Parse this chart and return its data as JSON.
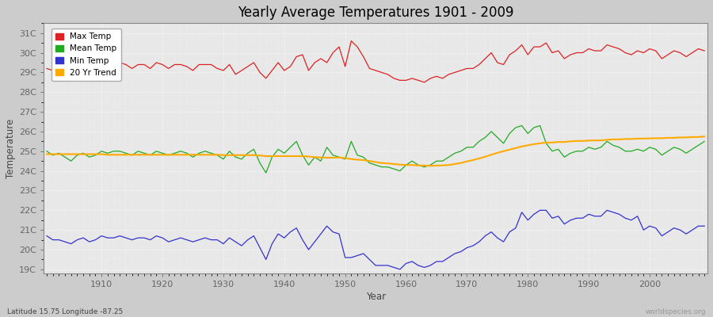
{
  "title": "Yearly Average Temperatures 1901 - 2009",
  "xlabel": "Year",
  "ylabel": "Temperature",
  "years_start": 1901,
  "years_end": 2009,
  "yticks": [
    19,
    20,
    21,
    22,
    23,
    24,
    25,
    26,
    27,
    28,
    29,
    30,
    31
  ],
  "ytick_labels": [
    "19C",
    "20C",
    "21C",
    "22C",
    "23C",
    "24C",
    "25C",
    "26C",
    "27C",
    "28C",
    "29C",
    "30C",
    "31C"
  ],
  "ylim": [
    18.8,
    31.5
  ],
  "xlim": [
    1900.5,
    2009.5
  ],
  "max_temp_color": "#dd2222",
  "mean_temp_color": "#22aa22",
  "min_temp_color": "#3333cc",
  "trend_color": "#ffaa00",
  "legend_labels": [
    "Max Temp",
    "Mean Temp",
    "Min Temp",
    "20 Yr Trend"
  ],
  "subtitle_left": "Latitude 15.75 Longitude -87.25",
  "subtitle_right": "worldspecies.org",
  "max_temps": [
    29.2,
    29.1,
    29.3,
    29.2,
    29.1,
    29.3,
    29.4,
    29.2,
    29.2,
    29.5,
    29.3,
    29.5,
    29.5,
    29.4,
    29.2,
    29.4,
    29.4,
    29.2,
    29.5,
    29.4,
    29.2,
    29.4,
    29.4,
    29.3,
    29.1,
    29.4,
    29.4,
    29.4,
    29.2,
    29.1,
    29.4,
    28.9,
    29.1,
    29.3,
    29.5,
    29.0,
    28.7,
    29.1,
    29.5,
    29.1,
    29.3,
    29.8,
    29.9,
    29.1,
    29.5,
    29.7,
    29.5,
    30.0,
    30.3,
    29.3,
    30.6,
    30.3,
    29.8,
    29.2,
    29.1,
    29.0,
    28.9,
    28.7,
    28.6,
    28.6,
    28.7,
    28.6,
    28.5,
    28.7,
    28.8,
    28.7,
    28.9,
    29.0,
    29.1,
    29.2,
    29.2,
    29.4,
    29.7,
    30.0,
    29.5,
    29.4,
    29.9,
    30.1,
    30.4,
    29.9,
    30.3,
    30.3,
    30.5,
    30.0,
    30.1,
    29.7,
    29.9,
    30.0,
    30.0,
    30.2,
    30.1,
    30.1,
    30.4,
    30.3,
    30.2,
    30.0,
    29.9,
    30.1,
    30.0,
    30.2,
    30.1,
    29.7,
    29.9,
    30.1,
    30.0,
    29.8,
    30.0,
    30.2,
    30.1
  ],
  "mean_temps": [
    25.0,
    24.8,
    24.9,
    24.7,
    24.5,
    24.8,
    24.9,
    24.7,
    24.8,
    25.0,
    24.9,
    25.0,
    25.0,
    24.9,
    24.8,
    25.0,
    24.9,
    24.8,
    25.0,
    24.9,
    24.8,
    24.9,
    25.0,
    24.9,
    24.7,
    24.9,
    25.0,
    24.9,
    24.8,
    24.6,
    25.0,
    24.7,
    24.6,
    24.9,
    25.1,
    24.4,
    23.9,
    24.7,
    25.1,
    24.9,
    25.2,
    25.5,
    24.8,
    24.3,
    24.7,
    24.5,
    25.2,
    24.8,
    24.7,
    24.6,
    25.5,
    24.8,
    24.7,
    24.4,
    24.3,
    24.2,
    24.2,
    24.1,
    24.0,
    24.3,
    24.5,
    24.3,
    24.2,
    24.3,
    24.5,
    24.5,
    24.7,
    24.9,
    25.0,
    25.2,
    25.2,
    25.5,
    25.7,
    26.0,
    25.7,
    25.4,
    25.9,
    26.2,
    26.3,
    25.9,
    26.2,
    26.3,
    25.4,
    25.0,
    25.1,
    24.7,
    24.9,
    25.0,
    25.0,
    25.2,
    25.1,
    25.2,
    25.5,
    25.3,
    25.2,
    25.0,
    25.0,
    25.1,
    25.0,
    25.2,
    25.1,
    24.8,
    25.0,
    25.2,
    25.1,
    24.9,
    25.1,
    25.3,
    25.5
  ],
  "min_temps": [
    20.7,
    20.5,
    20.5,
    20.4,
    20.3,
    20.5,
    20.6,
    20.4,
    20.5,
    20.7,
    20.6,
    20.6,
    20.7,
    20.6,
    20.5,
    20.6,
    20.6,
    20.5,
    20.7,
    20.6,
    20.4,
    20.5,
    20.6,
    20.5,
    20.4,
    20.5,
    20.6,
    20.5,
    20.5,
    20.3,
    20.6,
    20.4,
    20.2,
    20.5,
    20.7,
    20.1,
    19.5,
    20.3,
    20.8,
    20.6,
    20.9,
    21.1,
    20.5,
    20.0,
    20.4,
    20.8,
    21.2,
    20.9,
    20.8,
    19.6,
    19.6,
    19.7,
    19.8,
    19.5,
    19.2,
    19.2,
    19.2,
    19.1,
    19.0,
    19.3,
    19.4,
    19.2,
    19.1,
    19.2,
    19.4,
    19.4,
    19.6,
    19.8,
    19.9,
    20.1,
    20.2,
    20.4,
    20.7,
    20.9,
    20.6,
    20.4,
    20.9,
    21.1,
    21.9,
    21.5,
    21.8,
    22.0,
    22.0,
    21.6,
    21.7,
    21.3,
    21.5,
    21.6,
    21.6,
    21.8,
    21.7,
    21.7,
    22.0,
    21.9,
    21.8,
    21.6,
    21.5,
    21.7,
    21.0,
    21.2,
    21.1,
    20.7,
    20.9,
    21.1,
    21.0,
    20.8,
    21.0,
    21.2,
    21.2
  ],
  "trend_temps": [
    24.85,
    24.85,
    24.85,
    24.85,
    24.85,
    24.85,
    24.85,
    24.85,
    24.85,
    24.85,
    24.82,
    24.82,
    24.82,
    24.82,
    24.82,
    24.82,
    24.82,
    24.82,
    24.82,
    24.82,
    24.82,
    24.82,
    24.82,
    24.82,
    24.82,
    24.82,
    24.82,
    24.82,
    24.82,
    24.8,
    24.8,
    24.8,
    24.8,
    24.8,
    24.8,
    24.78,
    24.75,
    24.75,
    24.75,
    24.75,
    24.75,
    24.75,
    24.75,
    24.73,
    24.7,
    24.68,
    24.67,
    24.67,
    24.68,
    24.65,
    24.6,
    24.57,
    24.55,
    24.5,
    24.45,
    24.4,
    24.38,
    24.35,
    24.32,
    24.3,
    24.3,
    24.28,
    24.27,
    24.26,
    24.27,
    24.28,
    24.3,
    24.35,
    24.4,
    24.48,
    24.55,
    24.63,
    24.72,
    24.82,
    24.92,
    25.0,
    25.08,
    25.16,
    25.24,
    25.3,
    25.36,
    25.4,
    25.44,
    25.44,
    25.47,
    25.47,
    25.5,
    25.52,
    25.52,
    25.54,
    25.55,
    25.55,
    25.58,
    25.6,
    25.6,
    25.62,
    25.62,
    25.64,
    25.64,
    25.65,
    25.66,
    25.66,
    25.68,
    25.68,
    25.7,
    25.7,
    25.72,
    25.72,
    25.75
  ]
}
